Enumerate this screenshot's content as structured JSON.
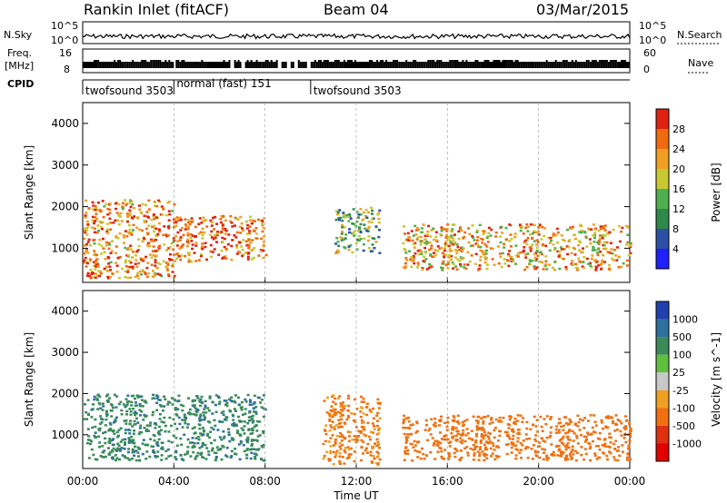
{
  "header": {
    "station": "Rankin Inlet (fitACF)",
    "beam": "Beam 04",
    "date": "03/Mar/2015"
  },
  "strip_labels": {
    "nsky": "N.Sky",
    "nsky_ticks": [
      "10^5",
      "10^0"
    ],
    "nsearch": "N.Search",
    "nsearch_ticks": [
      "10^5",
      "10^0"
    ],
    "freq": "Freq.",
    "freq_unit": "[MHz]",
    "freq_ticks": [
      "16",
      "8"
    ],
    "nave": "Nave",
    "nave_ticks": [
      "60",
      "0"
    ],
    "cpid": "CPID"
  },
  "cpid_segments": [
    {
      "label": "twofsound 3503",
      "start_h": 0,
      "end_h": 4
    },
    {
      "label": "normal (fast) 151",
      "start_h": 4,
      "end_h": 10
    },
    {
      "label": "twofsound 3503",
      "start_h": 10,
      "end_h": 24
    }
  ],
  "x_axis": {
    "label": "Time UT",
    "ticks": [
      "00:00",
      "04:00",
      "08:00",
      "12:00",
      "16:00",
      "20:00",
      "00:00"
    ]
  },
  "y_axis": {
    "label": "Slant Range [km]",
    "ticks": [
      "1000",
      "2000",
      "3000",
      "4000"
    ]
  },
  "power_scale": {
    "label": "Power [dB]",
    "ticks": [
      "4",
      "8",
      "12",
      "16",
      "20",
      "24",
      "28"
    ],
    "colors": [
      "#1f1fff",
      "#2e4fa6",
      "#2f8a4a",
      "#4fb04f",
      "#c8c832",
      "#f0a020",
      "#f06a10",
      "#e02010"
    ]
  },
  "velocity_scale": {
    "label": "Velocity [m s^-1]",
    "ticks": [
      "1000",
      "500",
      "100",
      "25",
      "-25",
      "-100",
      "-500",
      "-1000"
    ],
    "colors": [
      "#2040b0",
      "#2e6fa0",
      "#3a8a5a",
      "#5fc040",
      "#c8c8c8",
      "#f0a020",
      "#f07010",
      "#e03010",
      "#e00000"
    ]
  },
  "chart_data": {
    "type": "heatmap",
    "x_unit": "hours UT",
    "y_unit": "km",
    "xlim": [
      0,
      24
    ],
    "ylim": [
      180,
      4500
    ],
    "power_regions": [
      {
        "t0": 0.0,
        "t1": 4.0,
        "r0": 300,
        "r1": 2200,
        "power_dB": 24
      },
      {
        "t0": 4.0,
        "t1": 8.0,
        "r0": 700,
        "r1": 1800,
        "power_dB": 26
      },
      {
        "t0": 11.0,
        "t1": 13.0,
        "r0": 900,
        "r1": 2000,
        "power_dB": 14
      },
      {
        "t0": 14.0,
        "t1": 24.0,
        "r0": 500,
        "r1": 1600,
        "power_dB": 22
      }
    ],
    "velocity_regions": [
      {
        "t0": 0.0,
        "t1": 8.0,
        "r0": 400,
        "r1": 2000,
        "velocity_ms": 400
      },
      {
        "t0": 10.5,
        "t1": 13.0,
        "r0": 300,
        "r1": 2000,
        "velocity_ms": -200
      },
      {
        "t0": 14.0,
        "t1": 24.0,
        "r0": 400,
        "r1": 1500,
        "velocity_ms": -300
      }
    ]
  }
}
